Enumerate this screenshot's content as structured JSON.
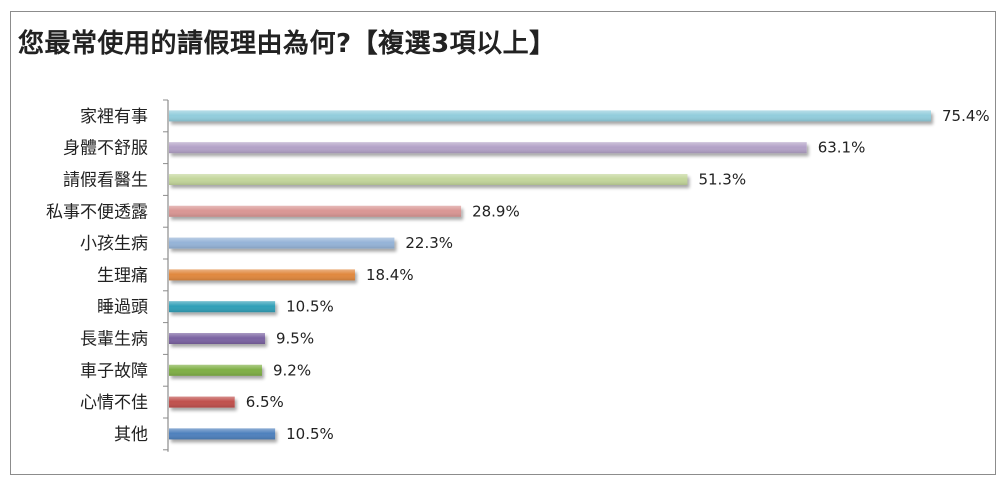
{
  "title": "您最常使用的請假理由為何?【複選3項以上】",
  "chart_data": {
    "type": "bar",
    "orientation": "horizontal",
    "title": "您最常使用的請假理由為何?【複選3項以上】",
    "xlabel": "",
    "ylabel": "",
    "xlim": [
      0,
      80
    ],
    "grid": false,
    "categories": [
      "家裡有事",
      "身體不舒服",
      "請假看醫生",
      "私事不便透露",
      "小孩生病",
      "生理痛",
      "睡過頭",
      "長輩生病",
      "車子故障",
      "心情不佳",
      "其他"
    ],
    "values": [
      75.4,
      63.1,
      51.3,
      28.9,
      22.3,
      18.4,
      10.5,
      9.5,
      9.2,
      6.5,
      10.5
    ],
    "value_labels": [
      "75.4%",
      "63.1%",
      "51.3%",
      "28.9%",
      "22.3%",
      "18.4%",
      "10.5%",
      "9.5%",
      "9.2%",
      "6.5%",
      "10.5%"
    ],
    "colors": [
      "#92cddc",
      "#b3a2c7",
      "#c3d69b",
      "#d99694",
      "#95b3d7",
      "#e0883f",
      "#31a0b8",
      "#7b63a2",
      "#7faf45",
      "#c0504d",
      "#4f81bd"
    ]
  }
}
